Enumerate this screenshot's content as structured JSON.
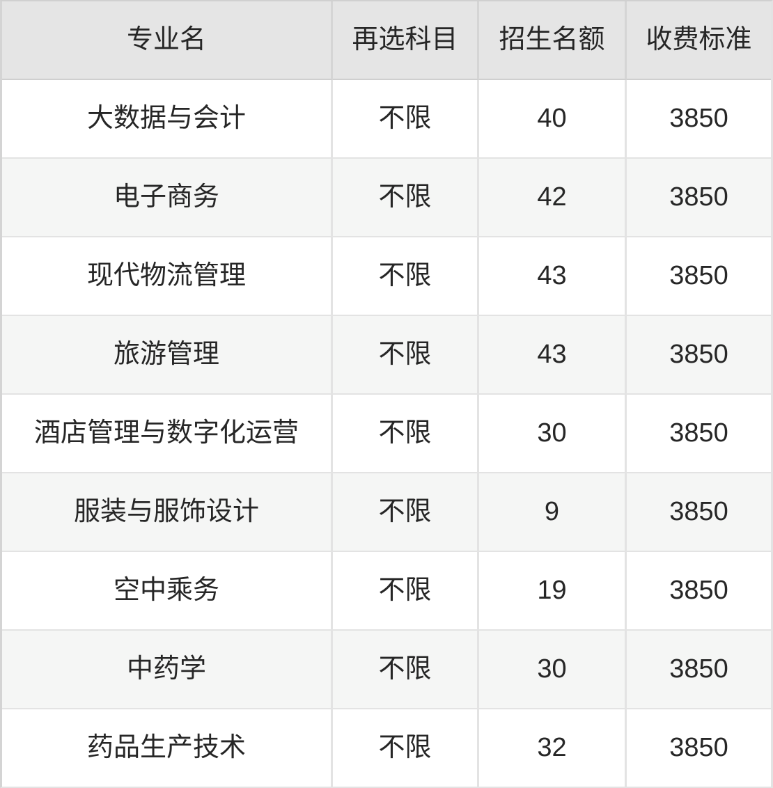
{
  "colors": {
    "header_bg": "#e5e5e5",
    "row_bg": "#ffffff",
    "row_alt_bg": "#f5f6f5",
    "border": "#e3e3e3",
    "header_border": "#cfcfcf",
    "text": "#262626"
  },
  "table": {
    "columns": [
      {
        "key": "major",
        "label": "专业名"
      },
      {
        "key": "subject",
        "label": "再选科目"
      },
      {
        "key": "quota",
        "label": "招生名额"
      },
      {
        "key": "fee",
        "label": "收费标准"
      }
    ],
    "rows": [
      [
        "大数据与会计",
        "不限",
        "40",
        "3850"
      ],
      [
        "电子商务",
        "不限",
        "42",
        "3850"
      ],
      [
        "现代物流管理",
        "不限",
        "43",
        "3850"
      ],
      [
        "旅游管理",
        "不限",
        "43",
        "3850"
      ],
      [
        "酒店管理与数字化运营",
        "不限",
        "30",
        "3850"
      ],
      [
        "服装与服饰设计",
        "不限",
        "9",
        "3850"
      ],
      [
        "空中乘务",
        "不限",
        "19",
        "3850"
      ],
      [
        "中药学",
        "不限",
        "30",
        "3850"
      ],
      [
        "药品生产技术",
        "不限",
        "32",
        "3850"
      ]
    ]
  }
}
